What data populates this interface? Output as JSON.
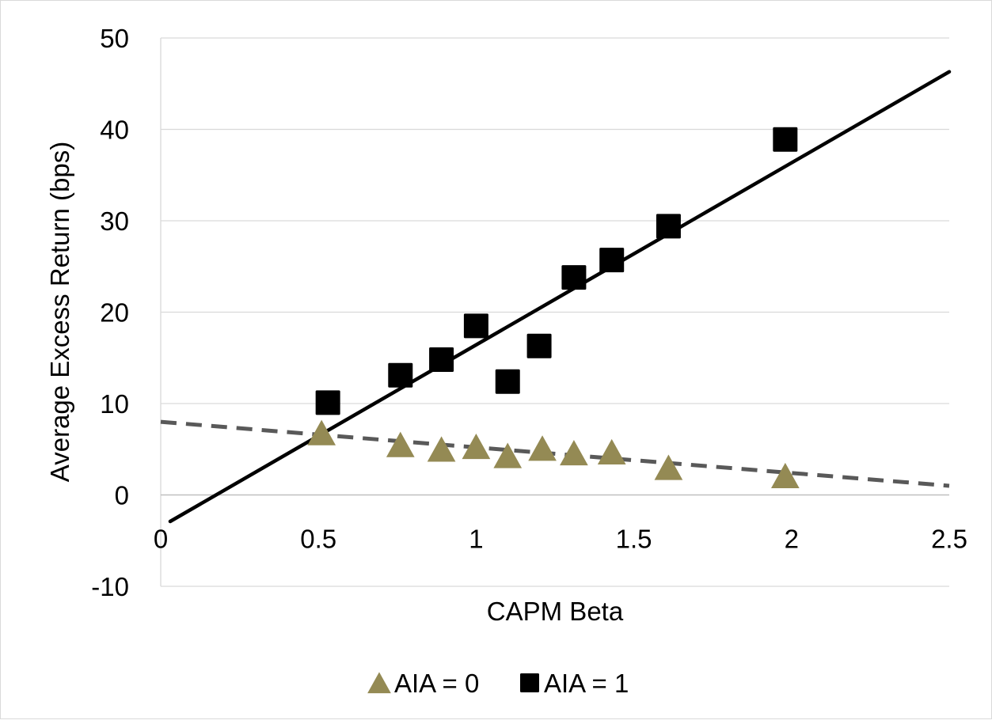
{
  "chart_data": {
    "type": "scatter",
    "title": "",
    "xlabel": "CAPM Beta",
    "ylabel": "Average Excess Return (bps)",
    "xlim": [
      0,
      2.5
    ],
    "ylim": [
      -10,
      50
    ],
    "xticks": [
      0,
      0.5,
      1,
      1.5,
      2,
      2.5
    ],
    "yticks": [
      -10,
      0,
      10,
      20,
      30,
      40,
      50
    ],
    "xtick_labels": [
      "0",
      "0.5",
      "1",
      "1.5",
      "2",
      "2.5"
    ],
    "ytick_labels": [
      "-10",
      "0",
      "10",
      "20",
      "30",
      "40",
      "50"
    ],
    "grid": "horizontal",
    "legend_position": "bottom",
    "series": [
      {
        "name": "AIA = 0",
        "marker": "triangle",
        "color": "#948A54",
        "x": [
          0.51,
          0.76,
          0.89,
          1.0,
          1.1,
          1.21,
          1.31,
          1.43,
          1.61,
          1.98
        ],
        "y": [
          6.8,
          5.5,
          5.0,
          5.3,
          4.3,
          5.1,
          4.6,
          4.7,
          3.0,
          2.1
        ],
        "trendline": {
          "style": "dashed",
          "color": "#595959",
          "x": [
            0.0,
            2.5
          ],
          "y": [
            8.0,
            1.0
          ]
        }
      },
      {
        "name": "AIA = 1",
        "marker": "square",
        "color": "#000000",
        "x": [
          0.53,
          0.76,
          0.89,
          1.0,
          1.1,
          1.2,
          1.31,
          1.43,
          1.61,
          1.98
        ],
        "y": [
          10.1,
          13.1,
          14.8,
          18.5,
          12.4,
          16.3,
          23.8,
          25.7,
          29.4,
          38.9
        ],
        "trendline": {
          "style": "solid",
          "color": "#000000",
          "x": [
            0.03,
            2.5
          ],
          "y": [
            -2.9,
            46.3
          ]
        }
      }
    ]
  }
}
